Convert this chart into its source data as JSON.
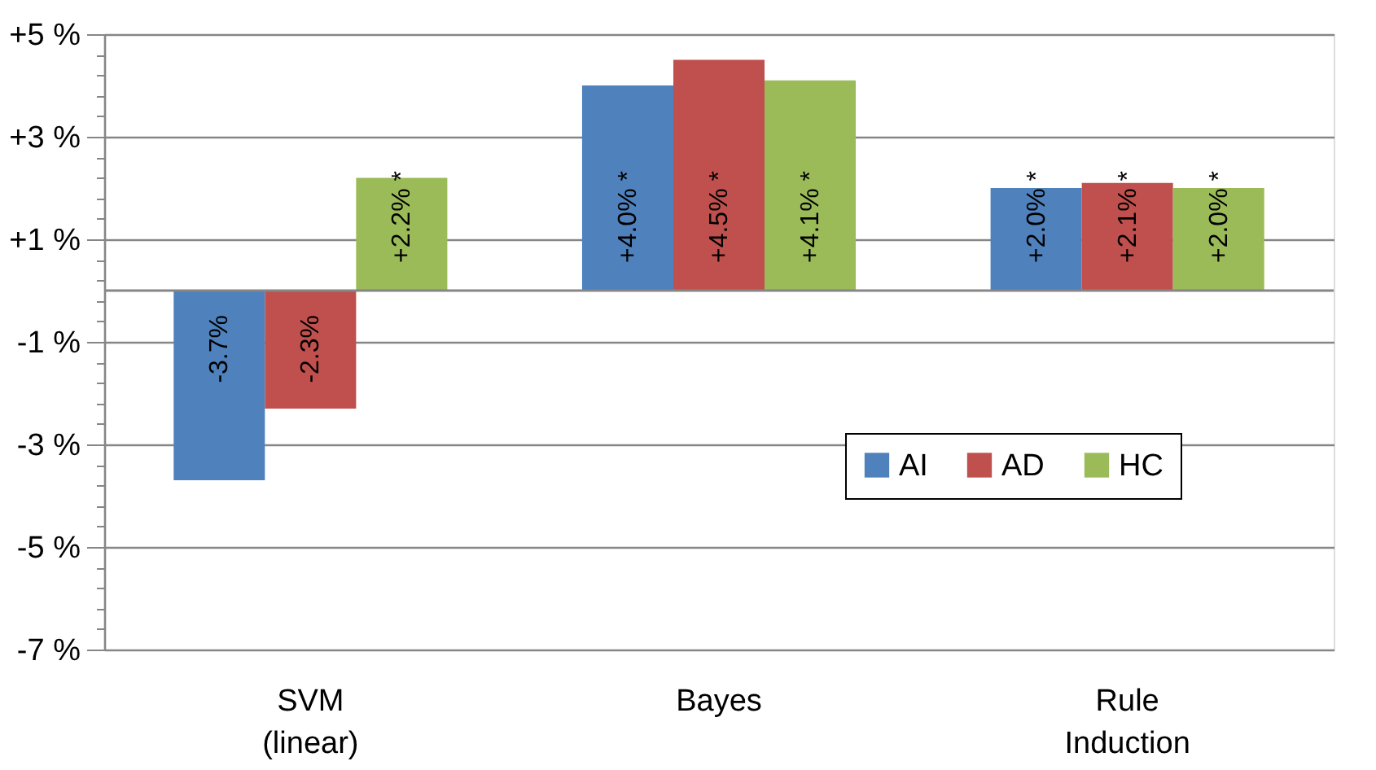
{
  "chart_data": {
    "type": "bar",
    "categories": [
      "SVM\n(linear)",
      "Bayes",
      "Rule\nInduction"
    ],
    "series": [
      {
        "name": "AI",
        "color": "#4f81bd",
        "values": [
          -3.7,
          4.0,
          2.0
        ],
        "value_labels": [
          "-3.7%",
          "+4.0% *",
          "+2.0% *"
        ]
      },
      {
        "name": "AD",
        "color": "#c0504d",
        "values": [
          -2.3,
          4.5,
          2.1
        ],
        "value_labels": [
          "-2.3%",
          "+4.5% *",
          "+2.1% *"
        ]
      },
      {
        "name": "HC",
        "color": "#9bbb59",
        "values": [
          2.2,
          4.1,
          2.0
        ],
        "value_labels": [
          "+2.2% *",
          "+4.1% *",
          "+2.0% *"
        ]
      }
    ],
    "ylim": [
      -7,
      5
    ],
    "yticks": [
      {
        "value": -7,
        "label": "-7 %"
      },
      {
        "value": -6.6,
        "label": null
      },
      {
        "value": -6.2,
        "label": null
      },
      {
        "value": -5.8,
        "label": null
      },
      {
        "value": -5.4,
        "label": null
      },
      {
        "value": -5,
        "label": "-5 %"
      },
      {
        "value": -4.6,
        "label": null
      },
      {
        "value": -4.2,
        "label": null
      },
      {
        "value": -3.8,
        "label": null
      },
      {
        "value": -3.4,
        "label": null
      },
      {
        "value": -3,
        "label": "-3 %"
      },
      {
        "value": -2.6,
        "label": null
      },
      {
        "value": -2.2,
        "label": null
      },
      {
        "value": -1.8,
        "label": null
      },
      {
        "value": -1.4,
        "label": null
      },
      {
        "value": -1,
        "label": "-1 %"
      },
      {
        "value": -0.6,
        "label": null
      },
      {
        "value": -0.2,
        "label": null
      },
      {
        "value": 0.2,
        "label": null
      },
      {
        "value": 0.6,
        "label": null
      },
      {
        "value": 1,
        "label": "+1 %"
      },
      {
        "value": 1.4,
        "label": null
      },
      {
        "value": 1.8,
        "label": null
      },
      {
        "value": 2.2,
        "label": null
      },
      {
        "value": 2.6,
        "label": null
      },
      {
        "value": 3,
        "label": "+3 %"
      },
      {
        "value": 3.4,
        "label": null
      },
      {
        "value": 3.8,
        "label": null
      },
      {
        "value": 4.2,
        "label": null
      },
      {
        "value": 4.6,
        "label": null
      },
      {
        "value": 5,
        "label": "+5 %"
      }
    ],
    "ref_lines": [
      {
        "axis": "y",
        "value": 0,
        "label": null,
        "color": "#868686"
      }
    ],
    "grid": "y",
    "legend": "bottom right"
  }
}
